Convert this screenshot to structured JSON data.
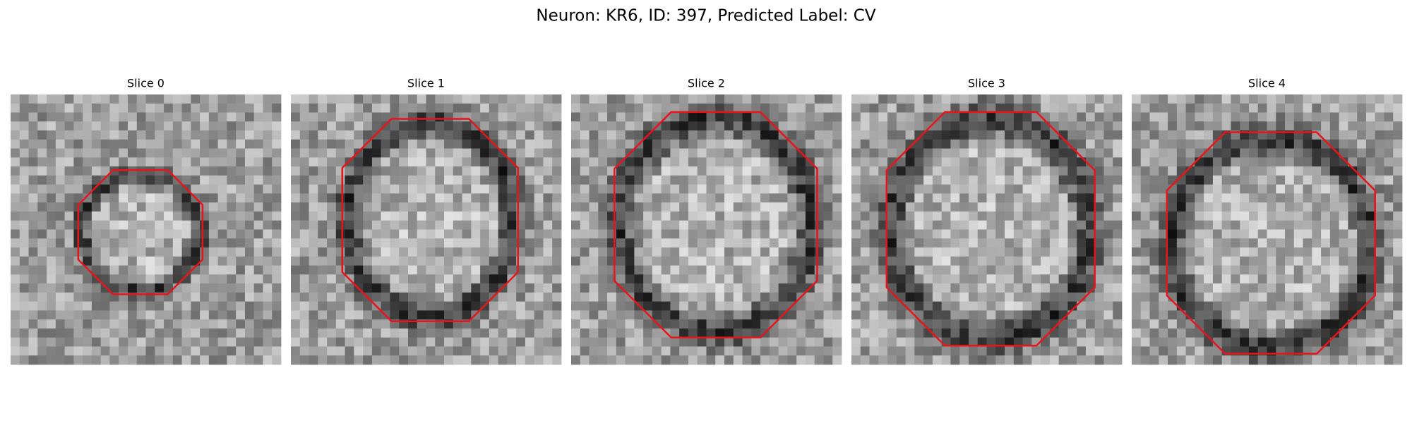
{
  "title": "Neuron: KR6, ID: 397, Predicted Label: CV",
  "panels": [
    {
      "title": "Slice 0"
    },
    {
      "title": "Slice 1"
    },
    {
      "title": "Slice 2"
    },
    {
      "title": "Slice 3"
    },
    {
      "title": "Slice 4"
    }
  ]
}
